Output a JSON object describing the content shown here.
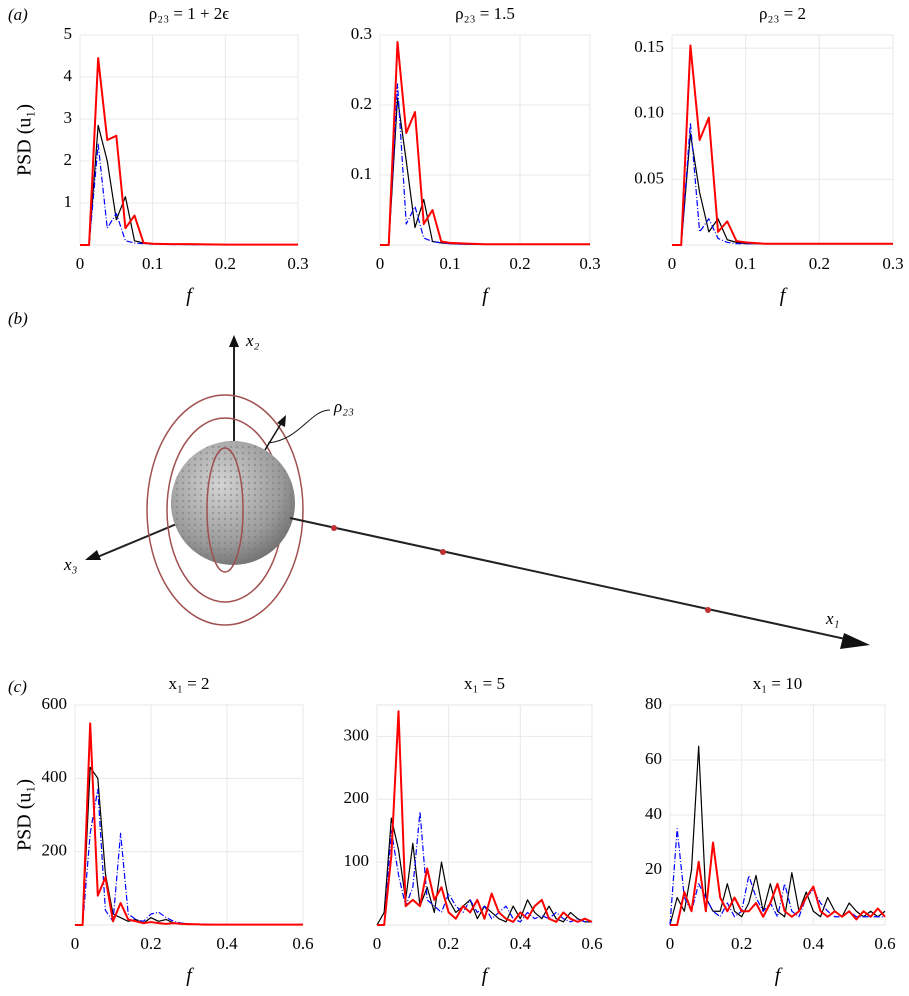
{
  "panel_labels": [
    "(a)",
    "(b)",
    "(c)"
  ],
  "diagram": {
    "labels": [
      "x₂",
      "ρ₂₃",
      "x₃",
      "x₁"
    ]
  },
  "chart_data": [
    {
      "type": "line",
      "title": "ρ₂₃ = 1 + 2ϵ",
      "xlabel": "f",
      "ylabel": "PSD (u₁)",
      "x": [
        0,
        0.0125,
        0.025,
        0.0375,
        0.05,
        0.0625,
        0.075,
        0.0875,
        0.1,
        0.125,
        0.15,
        0.2,
        0.25,
        0.3
      ],
      "xlim": [
        0,
        0.3
      ],
      "xticks": [
        0,
        0.1,
        0.2,
        0.3
      ],
      "ylim": [
        0,
        5
      ],
      "yticks": [
        1,
        2,
        3,
        4,
        5
      ],
      "grid": true,
      "series": [
        {
          "color": "#000000",
          "values": [
            0,
            0,
            2.85,
            2.0,
            0.6,
            1.15,
            0.1,
            0.05,
            0.03,
            0.02,
            0.01,
            0.01,
            0.01,
            0.01
          ]
        },
        {
          "color": "#0000ff",
          "style": "dashdot",
          "values": [
            0,
            0,
            2.4,
            0.4,
            0.75,
            0.1,
            0.05,
            0.03,
            0.02,
            0.01,
            0.01,
            0.01,
            0.01,
            0.01
          ]
        },
        {
          "color": "#ff0000",
          "values": [
            0,
            0,
            4.45,
            2.5,
            2.6,
            0.4,
            0.7,
            0.05,
            0.03,
            0.02,
            0.02,
            0.01,
            0.01,
            0.01
          ]
        }
      ]
    },
    {
      "type": "line",
      "title": "ρ₂₃ = 1.5",
      "xlabel": "f",
      "x": [
        0,
        0.0125,
        0.025,
        0.0375,
        0.05,
        0.0625,
        0.075,
        0.0875,
        0.1,
        0.125,
        0.15,
        0.2,
        0.25,
        0.3
      ],
      "xlim": [
        0,
        0.3
      ],
      "xticks": [
        0,
        0.1,
        0.2,
        0.3
      ],
      "ylim": [
        0,
        0.3
      ],
      "yticks": [
        0.1,
        0.2,
        0.3
      ],
      "grid": true,
      "series": [
        {
          "color": "#000000",
          "values": [
            0,
            0,
            0.21,
            0.12,
            0.025,
            0.065,
            0.005,
            0.003,
            0.002,
            0.001,
            0.001,
            0.001,
            0.001,
            0.001
          ]
        },
        {
          "color": "#0000ff",
          "style": "dashdot",
          "values": [
            0,
            0,
            0.23,
            0.03,
            0.055,
            0.01,
            0.005,
            0.003,
            0.002,
            0.001,
            0.001,
            0.001,
            0.001,
            0.001
          ]
        },
        {
          "color": "#ff0000",
          "values": [
            0,
            0,
            0.29,
            0.16,
            0.19,
            0.03,
            0.05,
            0.005,
            0.003,
            0.002,
            0.001,
            0.001,
            0.001,
            0.001
          ]
        }
      ]
    },
    {
      "type": "line",
      "title": "ρ₂₃ = 2",
      "xlabel": "f",
      "x": [
        0,
        0.0125,
        0.025,
        0.0375,
        0.05,
        0.0625,
        0.075,
        0.0875,
        0.1,
        0.125,
        0.15,
        0.2,
        0.25,
        0.3
      ],
      "xlim": [
        0,
        0.3
      ],
      "xticks": [
        0,
        0.1,
        0.2,
        0.3
      ],
      "ylim": [
        0,
        0.16
      ],
      "yticks": [
        0.05,
        {
          "value": 0.1,
          "label": "0.10"
        },
        0.15
      ],
      "grid": true,
      "series": [
        {
          "color": "#000000",
          "values": [
            0,
            0,
            0.085,
            0.04,
            0.01,
            0.02,
            0.004,
            0.002,
            0.001,
            0.001,
            0.001,
            0.001,
            0.001,
            0.001
          ]
        },
        {
          "color": "#0000ff",
          "style": "dashdot",
          "values": [
            0,
            0,
            0.093,
            0.01,
            0.02,
            0.005,
            0.002,
            0.001,
            0.001,
            0.001,
            0.001,
            0.001,
            0.001,
            0.001
          ]
        },
        {
          "color": "#ff0000",
          "values": [
            0,
            0,
            0.152,
            0.08,
            0.097,
            0.01,
            0.018,
            0.003,
            0.002,
            0.001,
            0.001,
            0.001,
            0.001,
            0.001
          ]
        }
      ]
    },
    {
      "type": "line",
      "title": "x₁ = 2",
      "xlabel": "f",
      "ylabel": "PSD (u₁)",
      "x": [
        0,
        0.02,
        0.04,
        0.06,
        0.08,
        0.1,
        0.12,
        0.14,
        0.16,
        0.18,
        0.2,
        0.22,
        0.24,
        0.26,
        0.28,
        0.3,
        0.32,
        0.34,
        0.36,
        0.38,
        0.4,
        0.42,
        0.44,
        0.46,
        0.48,
        0.5,
        0.52,
        0.54,
        0.56,
        0.58,
        0.6
      ],
      "xlim": [
        0,
        0.6
      ],
      "xticks": [
        0,
        0.2,
        0.4,
        0.6
      ],
      "ylim": [
        0,
        600
      ],
      "yticks": [
        200,
        400,
        600
      ],
      "grid": true,
      "series": [
        {
          "color": "#000000",
          "values": [
            0,
            0,
            430,
            400,
            140,
            30,
            20,
            10,
            15,
            5,
            20,
            10,
            15,
            5,
            5,
            3,
            2,
            2,
            1,
            1,
            1,
            1,
            1,
            1,
            1,
            1,
            1,
            1,
            1,
            1,
            1
          ]
        },
        {
          "color": "#0000ff",
          "style": "dashdot",
          "values": [
            0,
            0,
            250,
            370,
            40,
            10,
            250,
            30,
            15,
            10,
            30,
            35,
            20,
            10,
            5,
            3,
            2,
            2,
            1,
            1,
            1,
            1,
            1,
            1,
            1,
            1,
            1,
            1,
            1,
            1,
            1
          ]
        },
        {
          "color": "#ff0000",
          "values": [
            0,
            0,
            550,
            80,
            130,
            10,
            60,
            15,
            10,
            5,
            8,
            5,
            3,
            5,
            3,
            2,
            2,
            1,
            1,
            1,
            1,
            1,
            1,
            1,
            1,
            1,
            1,
            1,
            1,
            1,
            1
          ]
        }
      ]
    },
    {
      "type": "line",
      "title": "x₁ = 5",
      "xlabel": "f",
      "x": [
        0,
        0.02,
        0.04,
        0.06,
        0.08,
        0.1,
        0.12,
        0.14,
        0.16,
        0.18,
        0.2,
        0.22,
        0.24,
        0.26,
        0.28,
        0.3,
        0.32,
        0.34,
        0.36,
        0.38,
        0.4,
        0.42,
        0.44,
        0.46,
        0.48,
        0.5,
        0.52,
        0.54,
        0.56,
        0.58,
        0.6
      ],
      "xlim": [
        0,
        0.6
      ],
      "xticks": [
        0,
        0.2,
        0.4,
        0.6
      ],
      "ylim": [
        0,
        350
      ],
      "yticks": [
        100,
        200,
        300
      ],
      "grid": true,
      "series": [
        {
          "color": "#000000",
          "values": [
            0,
            20,
            170,
            120,
            40,
            130,
            30,
            60,
            20,
            100,
            40,
            20,
            30,
            40,
            10,
            30,
            20,
            10,
            5,
            30,
            10,
            40,
            20,
            10,
            30,
            10,
            5,
            20,
            10,
            5,
            5
          ]
        },
        {
          "color": "#0000ff",
          "style": "dashdot",
          "values": [
            0,
            0,
            150,
            80,
            30,
            60,
            180,
            40,
            30,
            20,
            50,
            30,
            20,
            40,
            20,
            30,
            10,
            20,
            30,
            10,
            5,
            20,
            10,
            15,
            10,
            20,
            10,
            5,
            10,
            5,
            5
          ]
        },
        {
          "color": "#ff0000",
          "values": [
            0,
            0,
            110,
            340,
            30,
            40,
            30,
            90,
            40,
            60,
            20,
            10,
            30,
            20,
            40,
            10,
            50,
            20,
            10,
            5,
            20,
            10,
            30,
            40,
            10,
            5,
            20,
            10,
            5,
            10,
            5
          ]
        }
      ]
    },
    {
      "type": "line",
      "title": "x₁ = 10",
      "xlabel": "f",
      "x": [
        0,
        0.02,
        0.04,
        0.06,
        0.08,
        0.1,
        0.12,
        0.14,
        0.16,
        0.18,
        0.2,
        0.22,
        0.24,
        0.26,
        0.28,
        0.3,
        0.32,
        0.34,
        0.36,
        0.38,
        0.4,
        0.42,
        0.44,
        0.46,
        0.48,
        0.5,
        0.52,
        0.54,
        0.56,
        0.58,
        0.6
      ],
      "xlim": [
        0,
        0.6
      ],
      "xticks": [
        0,
        0.2,
        0.4,
        0.6
      ],
      "ylim": [
        0,
        80
      ],
      "yticks": [
        20,
        40,
        60,
        80
      ],
      "grid": true,
      "series": [
        {
          "color": "#000000",
          "values": [
            0,
            10,
            5,
            20,
            65,
            10,
            5,
            5,
            15,
            5,
            3,
            8,
            18,
            5,
            15,
            5,
            3,
            19,
            5,
            12,
            5,
            3,
            10,
            5,
            3,
            8,
            5,
            3,
            5,
            3,
            5
          ]
        },
        {
          "color": "#0000ff",
          "style": "dashdot",
          "values": [
            0,
            35,
            10,
            5,
            15,
            10,
            5,
            3,
            8,
            3,
            5,
            18,
            10,
            5,
            8,
            3,
            15,
            5,
            3,
            10,
            13,
            8,
            5,
            3,
            3,
            5,
            3,
            3,
            3,
            3,
            3
          ]
        },
        {
          "color": "#ff0000",
          "values": [
            0,
            0,
            12,
            5,
            23,
            5,
            30,
            10,
            5,
            10,
            5,
            5,
            8,
            3,
            8,
            15,
            5,
            3,
            5,
            10,
            14,
            5,
            3,
            5,
            3,
            5,
            2,
            5,
            3,
            6,
            3
          ]
        }
      ]
    }
  ]
}
